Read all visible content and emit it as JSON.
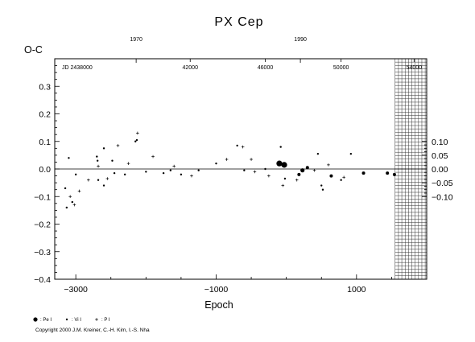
{
  "chart_data": {
    "type": "scatter",
    "title": "PX Cep",
    "ylabel": "O-C",
    "xlabel": "Epoch",
    "xlim": [
      -3300,
      2000
    ],
    "ylim": [
      -0.4,
      0.4
    ],
    "x_ticks": [
      -3000,
      -1000,
      1000
    ],
    "x_tick_labels": [
      "−3000",
      "−1000",
      "1000"
    ],
    "y_ticks": [
      -0.4,
      -0.3,
      -0.2,
      -0.1,
      0.0,
      0.1,
      0.2,
      0.3
    ],
    "y_tick_labels": [
      "−0.4",
      "−0.3",
      "−0.2",
      "−0.1",
      "0.0",
      "0.1",
      "0.2",
      "0.3"
    ],
    "right_ticks": [
      -0.1,
      -0.05,
      0.0,
      0.05,
      0.1
    ],
    "right_tick_labels": [
      "−0.10",
      "−0.05",
      "0.00",
      "0.05",
      "0.10"
    ],
    "top_year_axis": {
      "labels": [
        {
          "text": "1970",
          "epoch": -2140
        },
        {
          "text": "1990",
          "epoch": 200
        }
      ]
    },
    "top_jd_axis": {
      "prefix": "JD 2438000",
      "prefix_epoch": -2980,
      "labels": [
        {
          "text": "42000",
          "epoch": -1370
        },
        {
          "text": "46000",
          "epoch": -300
        },
        {
          "text": "50000",
          "epoch": 780
        },
        {
          "text": "54000",
          "epoch": 1820
        }
      ]
    },
    "future_region_start": 1550,
    "grid": false,
    "zero_line": true,
    "series": [
      {
        "name": "Pe",
        "marker": "circle",
        "points": [
          {
            "x": -100,
            "y": 0.02,
            "size": "large"
          },
          {
            "x": -30,
            "y": 0.015,
            "size": "large"
          },
          {
            "x": 230,
            "y": -0.005,
            "size": "medium"
          },
          {
            "x": 300,
            "y": 0.005,
            "size": "small"
          },
          {
            "x": 640,
            "y": -0.025,
            "size": "small"
          },
          {
            "x": 1100,
            "y": -0.015,
            "size": "small"
          },
          {
            "x": 1440,
            "y": -0.015,
            "size": "small"
          },
          {
            "x": 1540,
            "y": -0.02,
            "size": "small"
          },
          {
            "x": 180,
            "y": -0.02,
            "size": "small"
          }
        ]
      },
      {
        "name": "Vi",
        "marker": "dot",
        "points": [
          {
            "x": -3150,
            "y": -0.07
          },
          {
            "x": -3130,
            "y": -0.14
          },
          {
            "x": -3100,
            "y": 0.04
          },
          {
            "x": -3050,
            "y": -0.12
          },
          {
            "x": -3000,
            "y": -0.02
          },
          {
            "x": -2700,
            "y": 0.045
          },
          {
            "x": -2690,
            "y": 0.03
          },
          {
            "x": -2680,
            "y": -0.04
          },
          {
            "x": -2600,
            "y": -0.06
          },
          {
            "x": -2600,
            "y": 0.075
          },
          {
            "x": -2480,
            "y": 0.03
          },
          {
            "x": -2450,
            "y": -0.015
          },
          {
            "x": -2300,
            "y": -0.02
          },
          {
            "x": -2150,
            "y": 0.1
          },
          {
            "x": -2130,
            "y": 0.105
          },
          {
            "x": -2000,
            "y": -0.01
          },
          {
            "x": -1750,
            "y": -0.015
          },
          {
            "x": -1650,
            "y": -0.005
          },
          {
            "x": -1500,
            "y": -0.02
          },
          {
            "x": -1250,
            "y": -0.005
          },
          {
            "x": -1000,
            "y": 0.02
          },
          {
            "x": -700,
            "y": 0.085
          },
          {
            "x": -600,
            "y": -0.005
          },
          {
            "x": -300,
            "y": 0.0
          },
          {
            "x": -80,
            "y": 0.08
          },
          {
            "x": -20,
            "y": -0.035
          },
          {
            "x": 450,
            "y": 0.055
          },
          {
            "x": 500,
            "y": -0.06
          },
          {
            "x": 520,
            "y": -0.075
          },
          {
            "x": 780,
            "y": -0.04
          },
          {
            "x": 920,
            "y": 0.055
          }
        ]
      },
      {
        "name": "P",
        "marker": "cross",
        "points": [
          {
            "x": -3080,
            "y": -0.1
          },
          {
            "x": -3020,
            "y": -0.13
          },
          {
            "x": -2950,
            "y": -0.08
          },
          {
            "x": -2820,
            "y": -0.04
          },
          {
            "x": -2680,
            "y": 0.01
          },
          {
            "x": -2550,
            "y": -0.035
          },
          {
            "x": -2400,
            "y": 0.085
          },
          {
            "x": -2250,
            "y": 0.02
          },
          {
            "x": -2120,
            "y": 0.13
          },
          {
            "x": -1900,
            "y": 0.045
          },
          {
            "x": -1600,
            "y": 0.01
          },
          {
            "x": -1350,
            "y": -0.025
          },
          {
            "x": -850,
            "y": 0.035
          },
          {
            "x": -620,
            "y": 0.08
          },
          {
            "x": -500,
            "y": 0.035
          },
          {
            "x": -450,
            "y": -0.01
          },
          {
            "x": -250,
            "y": -0.025
          },
          {
            "x": -50,
            "y": -0.06
          },
          {
            "x": 150,
            "y": -0.04
          },
          {
            "x": 400,
            "y": -0.005
          },
          {
            "x": 600,
            "y": 0.015
          },
          {
            "x": 820,
            "y": -0.03
          }
        ]
      }
    ],
    "legend": {
      "placement": "bottom-left",
      "entries": [
        {
          "label": ": Pe I",
          "marker": "circle"
        },
        {
          "label": ": Vi I",
          "marker": "dot"
        },
        {
          "label": ": P I",
          "marker": "cross"
        }
      ]
    }
  },
  "copyright": "Copyright 2000 J.M. Kreiner, C.-H. Kim, I.-S. Nha"
}
